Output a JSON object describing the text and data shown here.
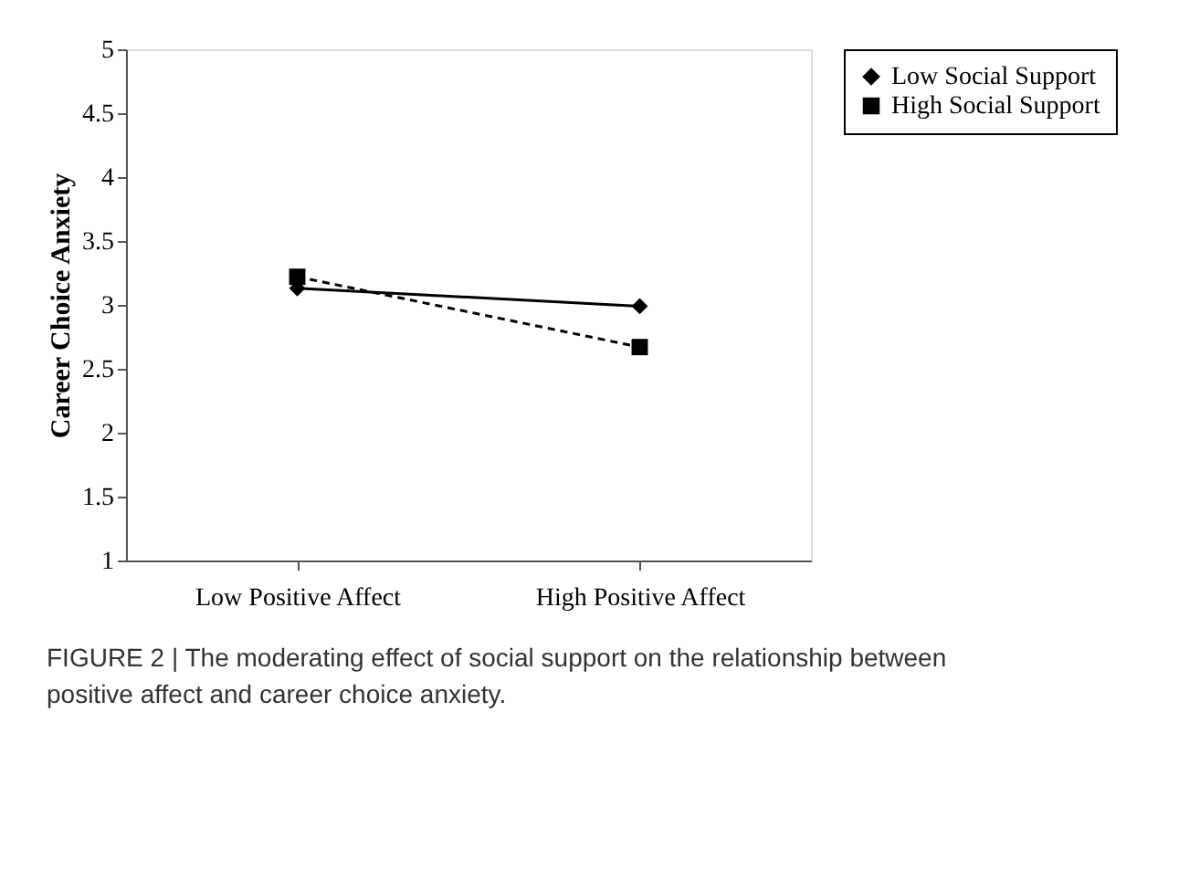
{
  "chart_data": {
    "type": "line",
    "ylabel": "Career Choice Anxiety",
    "categories": [
      "Low Positive Affect",
      "High Positive Affect"
    ],
    "series": [
      {
        "name": "Low Social Support",
        "color": "#000000",
        "values": [
          3.13,
          2.99
        ],
        "marker": "diamond",
        "line_style": "solid"
      },
      {
        "name": "High Social Support",
        "color": "#000000",
        "values": [
          3.22,
          2.67
        ],
        "marker": "square",
        "line_style": "dashed"
      }
    ],
    "ylim": [
      1,
      5
    ],
    "yticks": [
      1,
      1.5,
      2,
      2.5,
      3,
      3.5,
      4,
      4.5,
      5
    ],
    "grid": false,
    "legend": "right",
    "annotations": [
      "FIGURE 2 | The moderating effect of social support on the relationship between positive affect and career choice anxiety."
    ]
  }
}
